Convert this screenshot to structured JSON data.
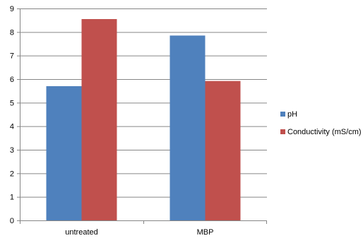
{
  "chart_data": {
    "type": "bar",
    "title": "",
    "xlabel": "",
    "ylabel": "",
    "categories": [
      "untreated",
      "MBP"
    ],
    "series": [
      {
        "name": "pH",
        "values": [
          5.7,
          7.85
        ],
        "color": "#4F81BD"
      },
      {
        "name": "Conductivity (mS/cm)",
        "values": [
          8.55,
          5.92
        ],
        "color": "#C0504D"
      }
    ],
    "ylim": [
      0,
      9
    ],
    "yticks": [
      0,
      1,
      2,
      3,
      4,
      5,
      6,
      7,
      8,
      9
    ],
    "grid": true,
    "legend_position": "right"
  }
}
